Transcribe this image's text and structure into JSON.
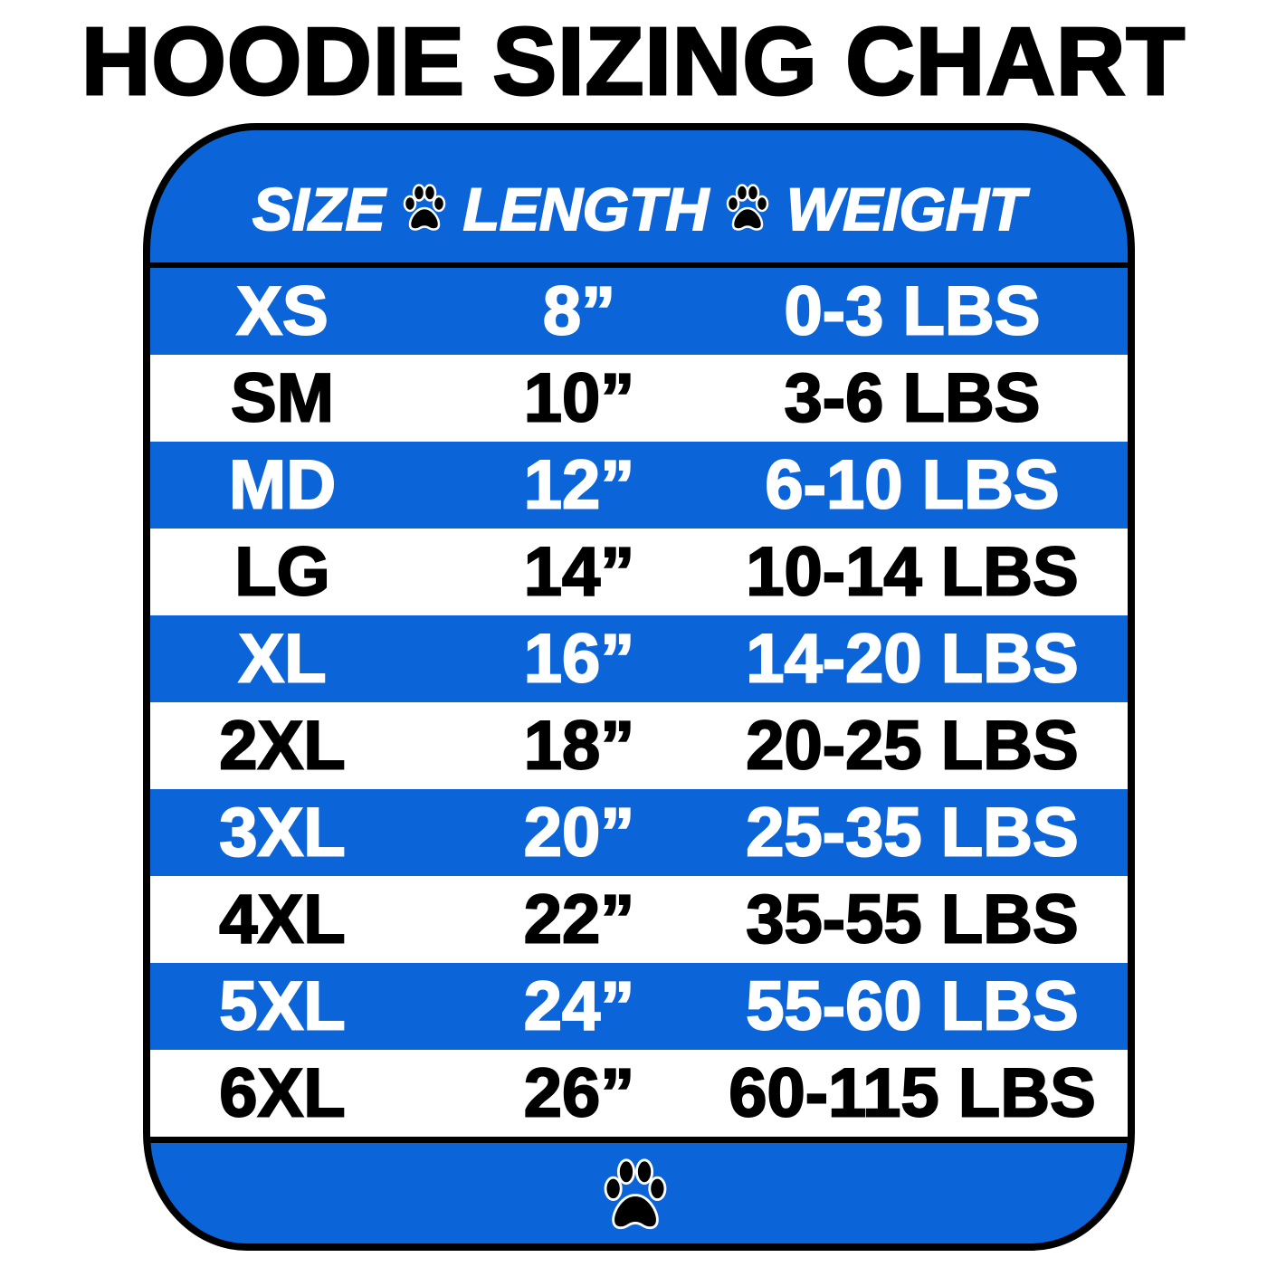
{
  "title": "HOODIE SIZING CHART",
  "colors": {
    "accent_blue": "#0b64d8",
    "border": "#000000",
    "row_alt": "#ffffff"
  },
  "header": {
    "size": "SIZE",
    "length": "LENGTH",
    "weight": "WEIGHT",
    "separator_icon": "paw-print-icon"
  },
  "rows": [
    {
      "size": "XS",
      "length": "8”",
      "weight": "0-3 LBS"
    },
    {
      "size": "SM",
      "length": "10”",
      "weight": "3-6 LBS"
    },
    {
      "size": "MD",
      "length": "12”",
      "weight": "6-10 LBS"
    },
    {
      "size": "LG",
      "length": "14”",
      "weight": "10-14 LBS"
    },
    {
      "size": "XL",
      "length": "16”",
      "weight": "14-20 LBS"
    },
    {
      "size": "2XL",
      "length": "18”",
      "weight": "20-25 LBS"
    },
    {
      "size": "3XL",
      "length": "20”",
      "weight": "25-35 LBS"
    },
    {
      "size": "4XL",
      "length": "22”",
      "weight": "35-55 LBS"
    },
    {
      "size": "5XL",
      "length": "24”",
      "weight": "55-60 LBS"
    },
    {
      "size": "6XL",
      "length": "26”",
      "weight": "60-115 LBS"
    }
  ],
  "footer": {
    "icon": "paw-print-icon"
  }
}
